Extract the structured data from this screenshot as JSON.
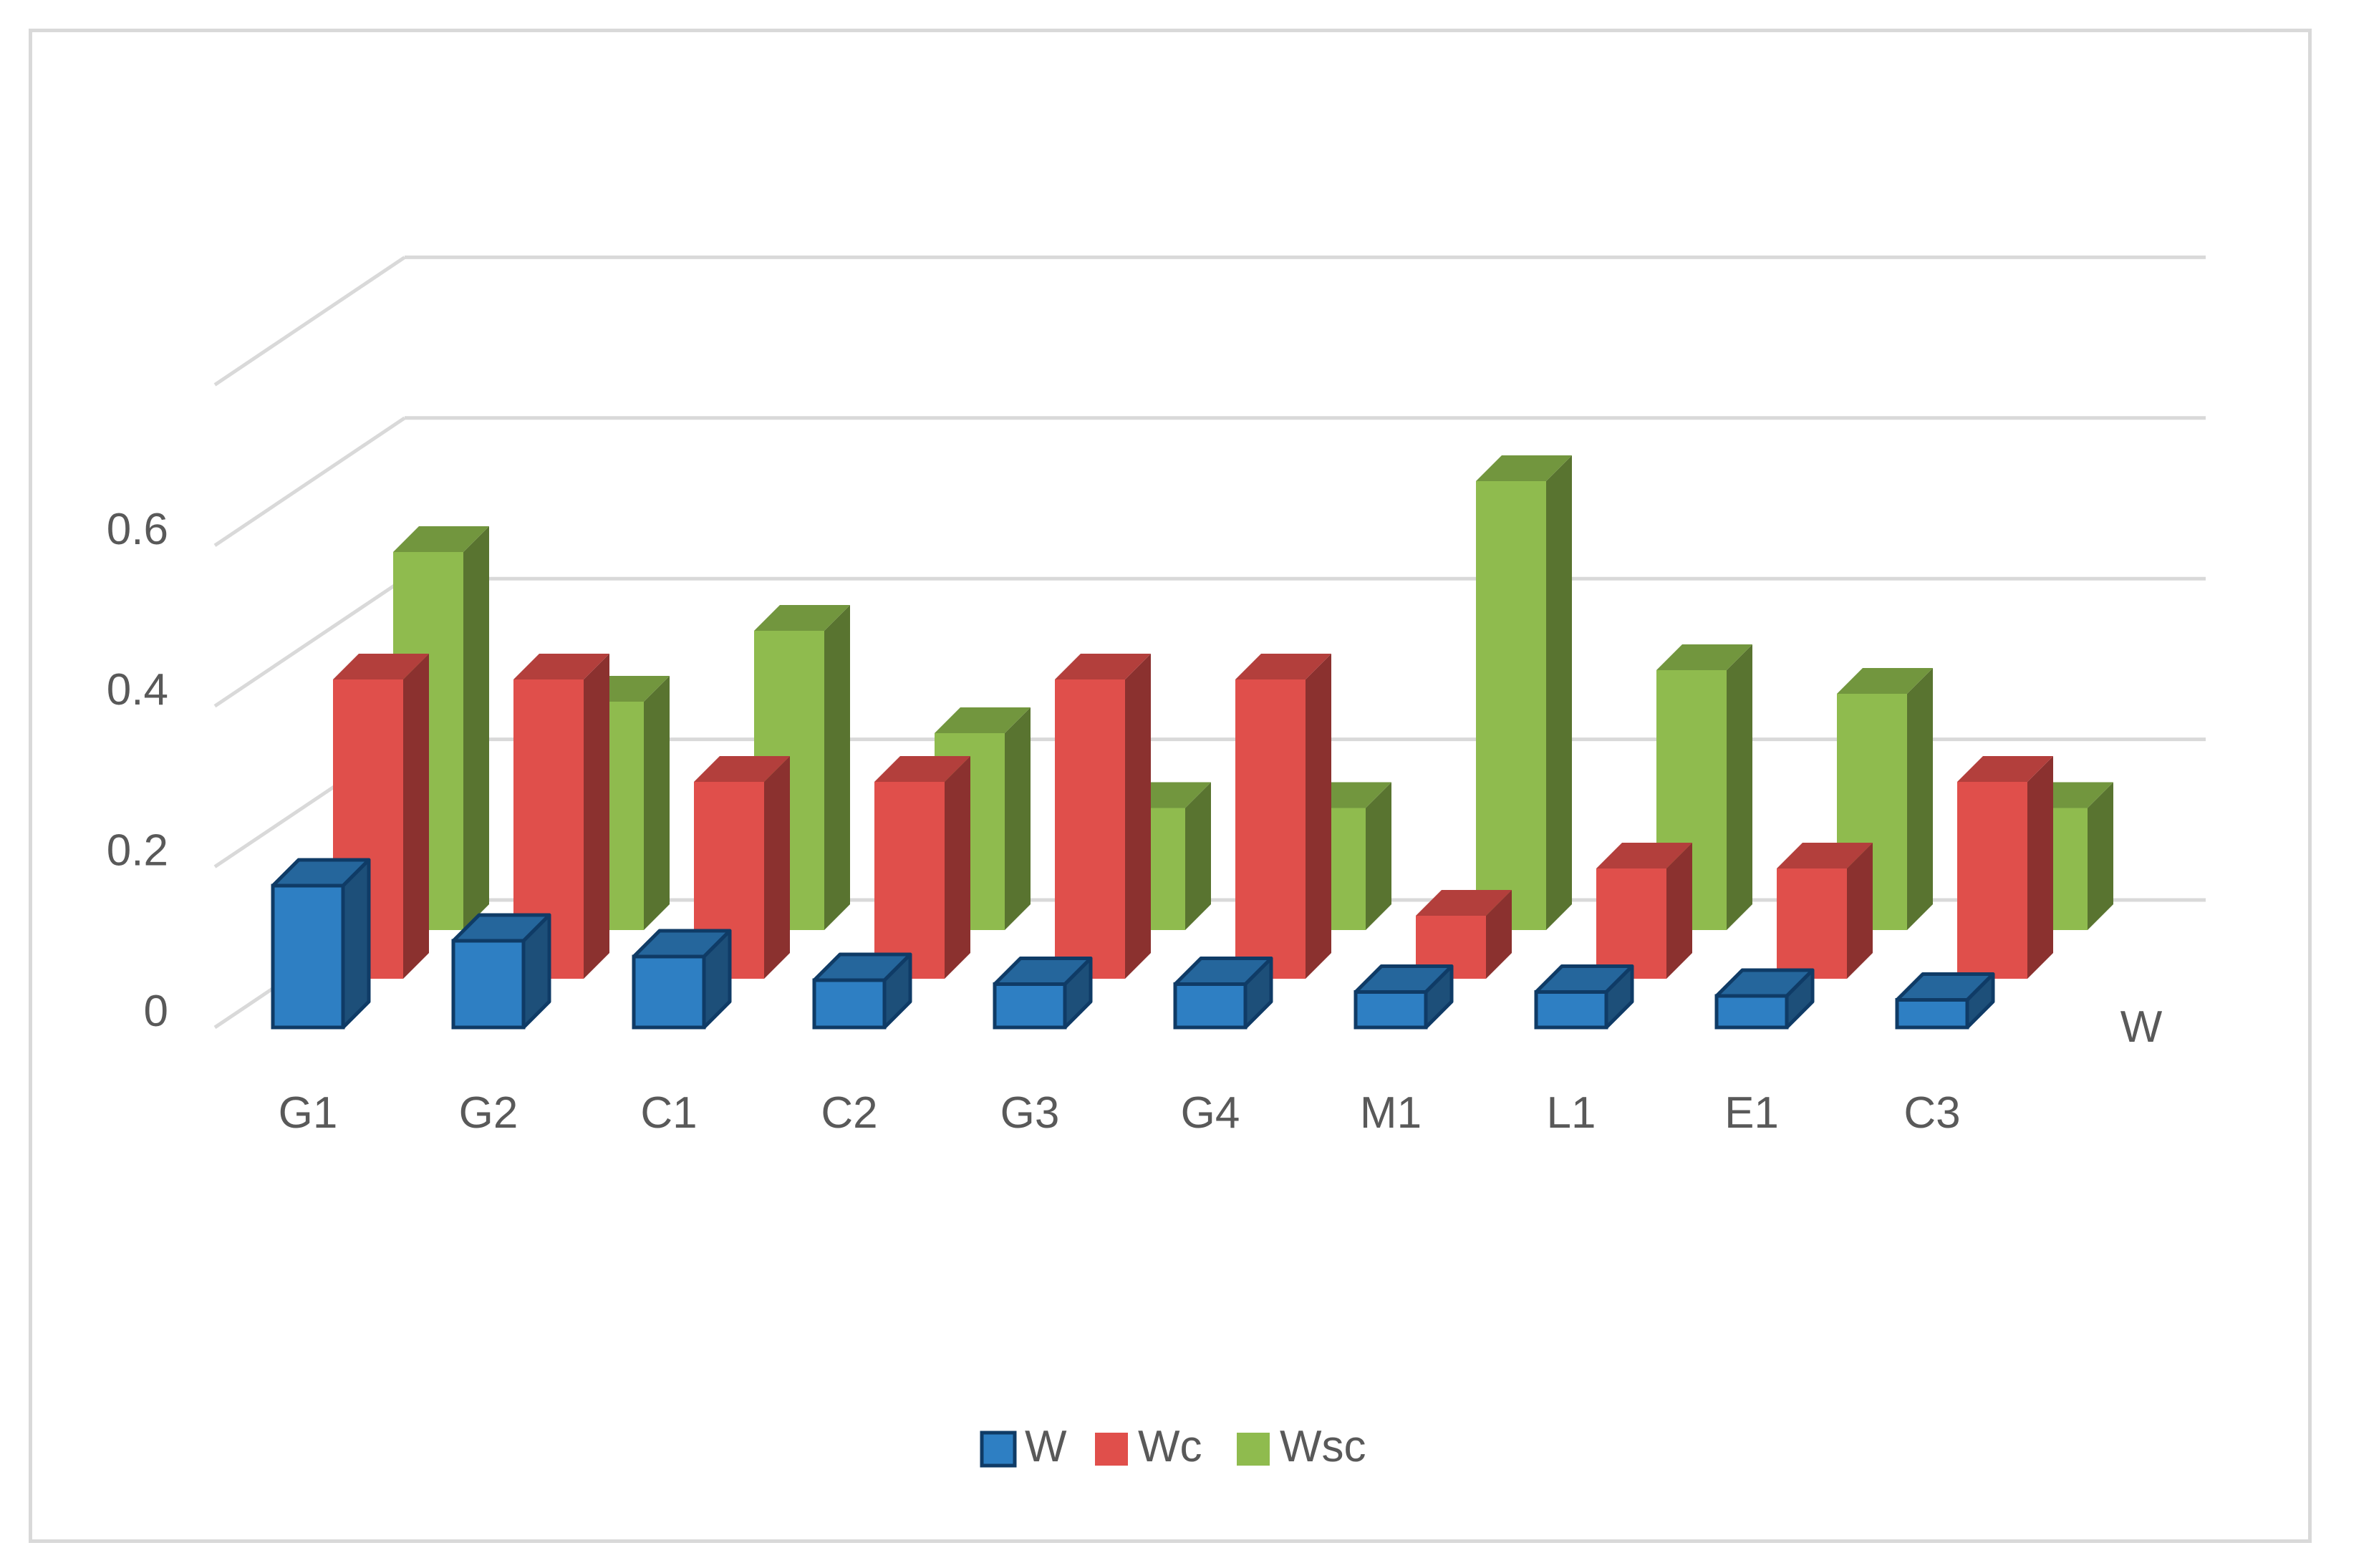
{
  "chart_data": {
    "type": "bar",
    "subtype": "3d-column",
    "title": "",
    "xlabel": "",
    "ylabel": "",
    "categories": [
      "G1",
      "G2",
      "C1",
      "C2",
      "G3",
      "G4",
      "M1",
      "L1",
      "E1",
      "C3"
    ],
    "depth_axis_labels": [
      "W"
    ],
    "yticks": [
      "0",
      "0.2",
      "0.4",
      "0.6"
    ],
    "ylim": [
      0,
      0.8
    ],
    "grid": true,
    "legend_position": "bottom",
    "series": [
      {
        "name": "W",
        "color": "#2e7fc3",
        "values": [
          0.18,
          0.11,
          0.09,
          0.06,
          0.055,
          0.055,
          0.045,
          0.045,
          0.04,
          0.035
        ]
      },
      {
        "name": "Wc",
        "color": "#e04f4b",
        "values": [
          0.38,
          0.38,
          0.25,
          0.25,
          0.38,
          0.38,
          0.08,
          0.14,
          0.14,
          0.25
        ]
      },
      {
        "name": "Wsc",
        "color": "#8fbb4e",
        "values": [
          0.48,
          0.29,
          0.38,
          0.25,
          0.155,
          0.155,
          0.57,
          0.33,
          0.3,
          0.155
        ]
      }
    ]
  }
}
